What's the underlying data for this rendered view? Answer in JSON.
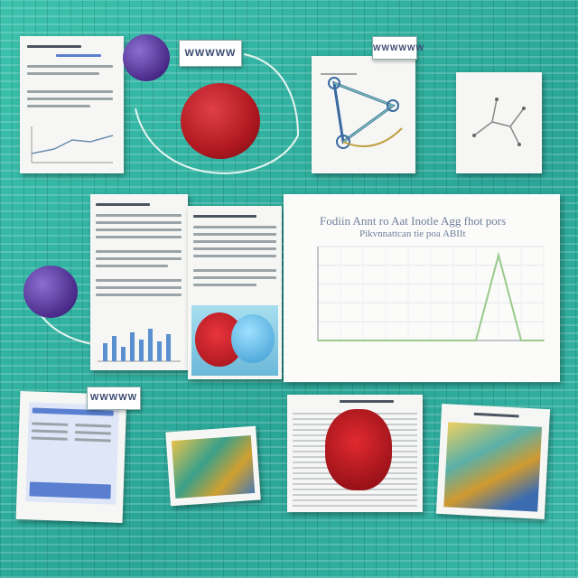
{
  "colors": {
    "background": "#35b8a6",
    "orb_red": "#c01d24",
    "orb_purple": "#5b3aa0",
    "chart_line": "#9ac98a"
  },
  "labels": {
    "tag_top": "WWWWW",
    "tag_top_right": "WWWWWW",
    "tag_bottom_left": "WWWWW"
  },
  "chart_data": {
    "type": "line",
    "title": "Fodiin Annt ro Aat Inotle Agg fhot pors",
    "subtitle": "Pikvnnattcan tie poa ABIIt",
    "x": [
      0,
      1,
      2,
      3,
      4,
      5,
      6,
      7,
      8,
      9,
      10
    ],
    "y": [
      0,
      0,
      0,
      0,
      0,
      0,
      0,
      0,
      1.0,
      0,
      0
    ],
    "ylim": [
      0,
      1.1
    ],
    "grid": true,
    "xlabel": ""
  }
}
